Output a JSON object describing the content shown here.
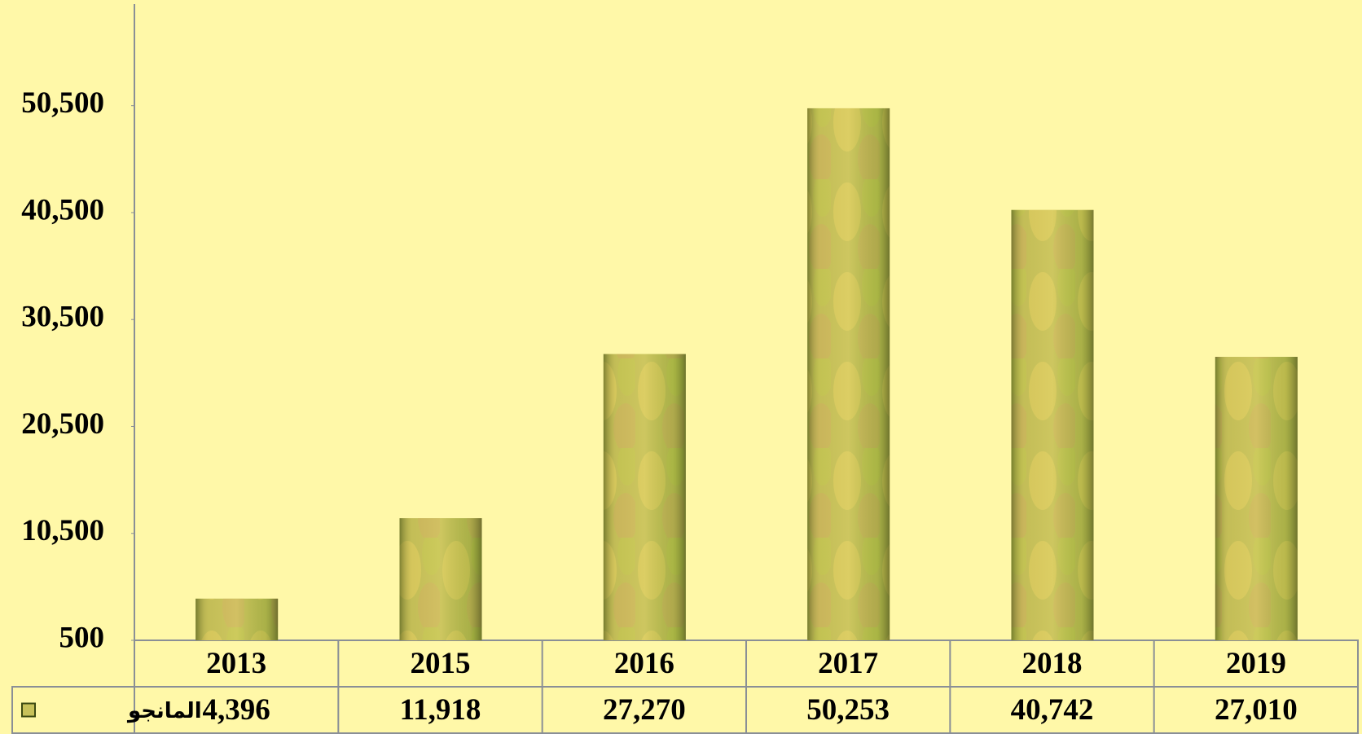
{
  "chart_data": {
    "type": "bar",
    "categories": [
      "2013",
      "2015",
      "2016",
      "2017",
      "2018",
      "2019"
    ],
    "series": [
      {
        "name": "المانجو",
        "color": "#c8c25a",
        "values": [
          4396,
          11918,
          27270,
          50253,
          40742,
          27010
        ],
        "value_labels": [
          "4,396",
          "11,918",
          "27,270",
          "50,253",
          "40,742",
          "27,010"
        ]
      }
    ],
    "ylim": [
      500,
      60000
    ],
    "yticks": [
      {
        "value": 500,
        "label": "500"
      },
      {
        "value": 10500,
        "label": "10,500"
      },
      {
        "value": 20500,
        "label": "20,500"
      },
      {
        "value": 30500,
        "label": "30,500"
      },
      {
        "value": 40500,
        "label": "40,500"
      },
      {
        "value": 50500,
        "label": "50,500"
      }
    ],
    "grid": false
  }
}
